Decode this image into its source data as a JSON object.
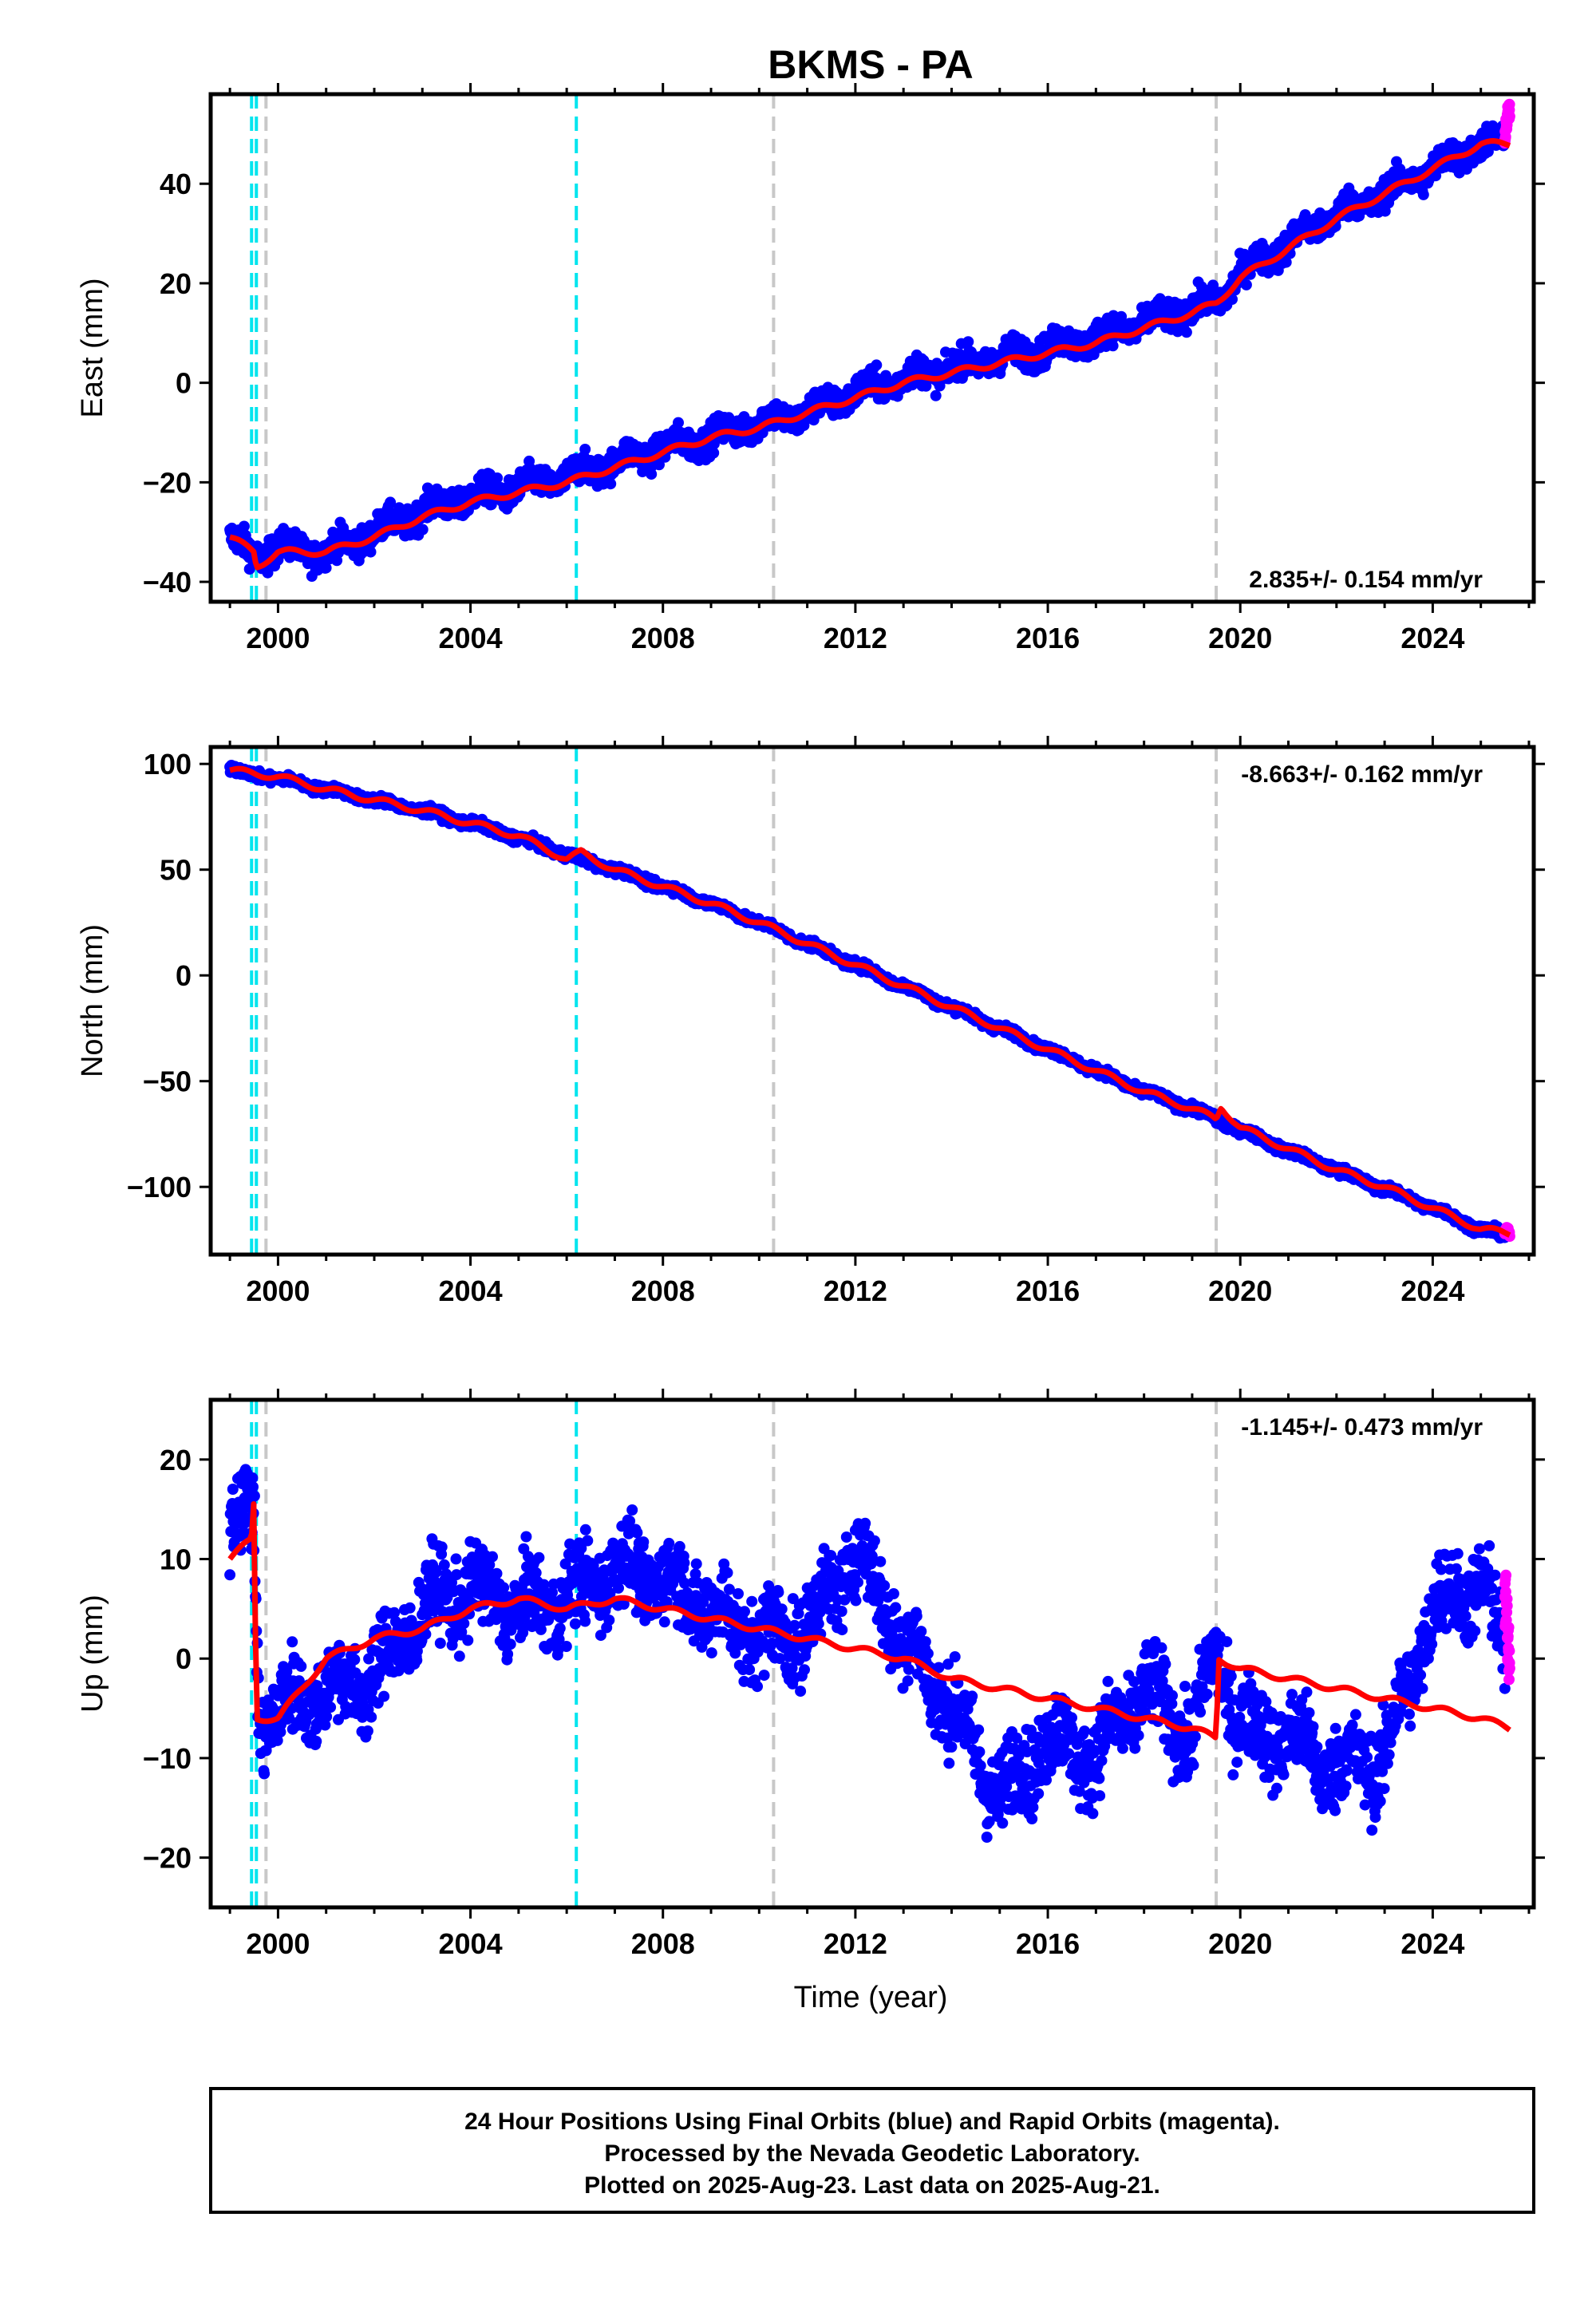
{
  "title": "BKMS - PA",
  "xlabel": "Time (year)",
  "footer": {
    "line1": "24 Hour Positions Using Final Orbits (blue) and Rapid Orbits (magenta).",
    "line2": "Processed by the Nevada Geodetic Laboratory.",
    "line3": "Plotted on 2025-Aug-23. Last data on 2025-Aug-21."
  },
  "colors": {
    "final": "#0000ff",
    "rapid": "#ff00ff",
    "model": "#ff0000",
    "equipment_change": "#00e5ee",
    "earthquake": "#c8c8c8"
  },
  "chart_data": [
    {
      "type": "scatter",
      "component": "east",
      "ylabel": "East (mm)",
      "rate": "2.835+/- 0.154 mm/yr",
      "rate_position": "bottom-right",
      "xlim": [
        1998.6,
        2026.1
      ],
      "ylim": [
        -44,
        58
      ],
      "xticks": [
        2000,
        2004,
        2008,
        2012,
        2016,
        2020,
        2024
      ],
      "yticks": [
        -40,
        -20,
        0,
        20,
        40
      ],
      "series": [
        {
          "name": "Final Orbits (blue)",
          "x": [
            1999.0,
            1999.5,
            2000.0,
            2000.5,
            2001.0,
            2002.0,
            2003.0,
            2004.0,
            2005.0,
            2006.0,
            2007.0,
            2008.0,
            2009.0,
            2010.0,
            2011.0,
            2012.0,
            2013.0,
            2014.0,
            2015.0,
            2016.0,
            2017.0,
            2018.0,
            2019.0,
            2019.5,
            2020.0,
            2021.0,
            2022.0,
            2023.0,
            2024.0,
            2025.0,
            2025.5
          ],
          "y": [
            -31,
            -35,
            -33,
            -34,
            -34,
            -30,
            -26,
            -23,
            -21,
            -19,
            -16,
            -13,
            -11,
            -8,
            -6,
            -2,
            1,
            3,
            5,
            7,
            9,
            12,
            15,
            16,
            22,
            28,
            34,
            38,
            43,
            48,
            48
          ],
          "noise": 3.5
        },
        {
          "name": "Rapid Orbits (magenta)",
          "x": [
            2025.5,
            2025.55,
            2025.6
          ],
          "y": [
            50,
            53,
            55
          ],
          "noise": 2.5
        }
      ],
      "model": {
        "x": [
          1999.0,
          1999.5,
          1999.55,
          2000.0,
          2001.0,
          2002.0,
          2003.0,
          2004.0,
          2005.0,
          2006.0,
          2007.0,
          2008.0,
          2009.0,
          2010.0,
          2011.0,
          2012.0,
          2013.0,
          2014.0,
          2015.0,
          2016.0,
          2017.0,
          2018.0,
          2019.0,
          2019.5,
          2020.0,
          2021.0,
          2022.0,
          2023.0,
          2024.0,
          2025.0,
          2025.6
        ],
        "y": [
          -31,
          -34,
          -37,
          -34,
          -34,
          -31,
          -27,
          -24,
          -22,
          -20,
          -17,
          -14,
          -11,
          -9,
          -6,
          -3,
          0,
          2,
          4,
          6,
          8,
          11,
          14,
          16,
          21,
          27,
          33,
          38,
          43,
          48,
          48
        ]
      },
      "equipment_changes": [
        1999.45,
        1999.55,
        2006.2
      ],
      "earthquakes": [
        1999.75,
        2010.3,
        2019.5
      ]
    },
    {
      "type": "scatter",
      "component": "north",
      "ylabel": "North (mm)",
      "rate": "-8.663+/- 0.162 mm/yr",
      "rate_position": "top-right",
      "xlim": [
        1998.6,
        2026.1
      ],
      "ylim": [
        -132,
        108
      ],
      "xticks": [
        2000,
        2004,
        2008,
        2012,
        2016,
        2020,
        2024
      ],
      "yticks": [
        -100,
        -50,
        0,
        50,
        100
      ],
      "series": [
        {
          "name": "Final Orbits (blue)",
          "x": [
            1999.0,
            2000.0,
            2001.0,
            2002.0,
            2003.0,
            2004.0,
            2005.0,
            2006.0,
            2007.0,
            2008.0,
            2009.0,
            2010.0,
            2011.0,
            2012.0,
            2013.0,
            2014.0,
            2015.0,
            2016.0,
            2017.0,
            2018.0,
            2019.0,
            2020.0,
            2021.0,
            2022.0,
            2023.0,
            2024.0,
            2025.0,
            2025.5
          ],
          "y": [
            97,
            93,
            88,
            83,
            78,
            72,
            65,
            57,
            50,
            42,
            34,
            25,
            15,
            5,
            -5,
            -15,
            -25,
            -35,
            -45,
            -55,
            -63,
            -73,
            -83,
            -92,
            -101,
            -110,
            -120,
            -123
          ],
          "noise": 2.5
        },
        {
          "name": "Rapid Orbits (magenta)",
          "x": [
            2025.5,
            2025.55,
            2025.6
          ],
          "y": [
            -122,
            -121,
            -123
          ],
          "noise": 2
        }
      ],
      "model": {
        "x": [
          1999.0,
          2000.0,
          2001.0,
          2002.0,
          2003.0,
          2004.0,
          2005.0,
          2006.0,
          2006.3,
          2007.0,
          2008.0,
          2009.0,
          2010.0,
          2011.0,
          2012.0,
          2013.0,
          2014.0,
          2015.0,
          2016.0,
          2017.0,
          2018.0,
          2019.0,
          2019.5,
          2019.6,
          2020.0,
          2021.0,
          2022.0,
          2023.0,
          2024.0,
          2025.0,
          2025.6
        ],
        "y": [
          97,
          94,
          88,
          83,
          78,
          72,
          66,
          55,
          58,
          50,
          42,
          34,
          25,
          15,
          5,
          -5,
          -15,
          -25,
          -35,
          -45,
          -55,
          -63,
          -68,
          -62,
          -72,
          -82,
          -92,
          -100,
          -110,
          -120,
          -122
        ]
      },
      "equipment_changes": [
        1999.45,
        1999.55,
        2006.2
      ],
      "earthquakes": [
        1999.75,
        2010.3,
        2019.5
      ]
    },
    {
      "type": "scatter",
      "component": "up",
      "ylabel": "Up (mm)",
      "rate": "-1.145+/- 0.473 mm/yr",
      "rate_position": "top-right",
      "xlim": [
        1998.6,
        2026.1
      ],
      "ylim": [
        -25,
        26
      ],
      "xticks": [
        2000,
        2004,
        2008,
        2012,
        2016,
        2020,
        2024
      ],
      "yticks": [
        -20,
        -10,
        0,
        10,
        20
      ],
      "series": [
        {
          "name": "Final Orbits (blue)",
          "x": [
            1999.0,
            1999.5,
            1999.6,
            2000.0,
            2001.0,
            2002.0,
            2003.0,
            2004.0,
            2005.0,
            2006.0,
            2007.0,
            2008.0,
            2009.0,
            2010.0,
            2011.0,
            2012.0,
            2013.0,
            2014.0,
            2015.0,
            2016.0,
            2017.0,
            2018.0,
            2019.0,
            2019.5,
            2020.0,
            2021.0,
            2022.0,
            2023.0,
            2024.0,
            2025.0,
            2025.5
          ],
          "y": [
            14,
            14,
            -6,
            -5,
            -3,
            -2,
            5,
            7,
            5,
            6,
            9,
            8,
            5,
            2,
            3,
            11,
            2,
            -5,
            -14,
            -8,
            -10,
            -3,
            -8,
            1,
            -7,
            -8,
            -11,
            -10,
            5,
            8,
            0
          ],
          "noise": 5
        },
        {
          "name": "Rapid Orbits (magenta)",
          "x": [
            2025.5,
            2025.55,
            2025.6
          ],
          "y": [
            6,
            3,
            0
          ],
          "noise": 4
        }
      ],
      "model": {
        "x": [
          1999.0,
          1999.45,
          1999.5,
          1999.55,
          2000.0,
          2001.0,
          2002.0,
          2003.0,
          2004.0,
          2005.0,
          2006.0,
          2007.0,
          2008.0,
          2009.0,
          2010.0,
          2011.0,
          2012.0,
          2013.0,
          2014.0,
          2015.0,
          2016.0,
          2017.0,
          2018.0,
          2019.0,
          2019.5,
          2019.55,
          2020.0,
          2021.0,
          2022.0,
          2023.0,
          2024.0,
          2025.0,
          2025.6
        ],
        "y": [
          10,
          12,
          16,
          -6,
          -6,
          0,
          2,
          3,
          5,
          6,
          5,
          6,
          5,
          4,
          3,
          2,
          1,
          0,
          -2,
          -3,
          -4,
          -5,
          -6,
          -7,
          -8,
          0,
          -1,
          -2,
          -3,
          -4,
          -5,
          -6,
          -7
        ]
      },
      "equipment_changes": [
        1999.45,
        1999.55,
        2006.2
      ],
      "earthquakes": [
        1999.75,
        2010.3,
        2019.5
      ]
    }
  ]
}
